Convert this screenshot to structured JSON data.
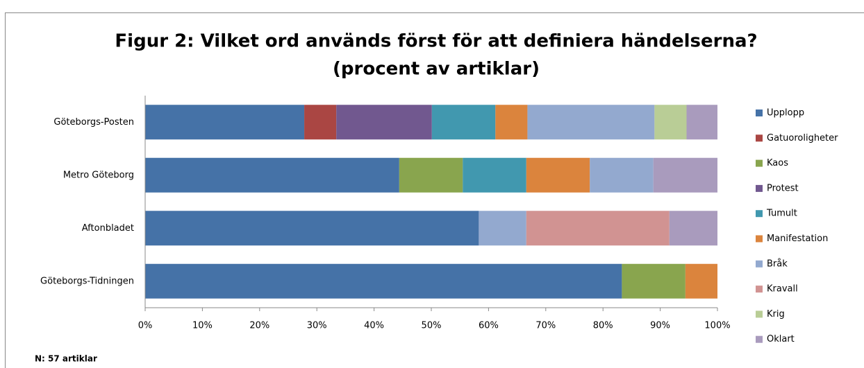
{
  "chart_data": {
    "type": "stacked-barh",
    "title": "Figur 2: Vilket ord används först för att definiera händelserna?",
    "subtitle": "(procent av artiklar)",
    "note": "N: 57 artiklar",
    "categories": [
      "Göteborgs-Posten",
      "Metro Göteborg",
      "Aftonbladet",
      "Göteborgs-Tidningen"
    ],
    "series": [
      {
        "name": "Upplopp",
        "color": "#4572a7",
        "values": [
          27.8,
          44.4,
          58.3,
          83.3
        ]
      },
      {
        "name": "Gatuoroligheter",
        "color": "#aa4643",
        "values": [
          5.6,
          null,
          null,
          null
        ]
      },
      {
        "name": "Kaos",
        "color": "#89a54e",
        "values": [
          null,
          11.1,
          null,
          11.1
        ]
      },
      {
        "name": "Protest",
        "color": "#71588f",
        "values": [
          16.7,
          null,
          null,
          null
        ]
      },
      {
        "name": "Tumult",
        "color": "#4198af",
        "values": [
          11.1,
          11.1,
          null,
          null
        ]
      },
      {
        "name": "Manifestation",
        "color": "#db843d",
        "values": [
          5.6,
          11.1,
          null,
          5.6
        ]
      },
      {
        "name": "Bråk",
        "color": "#93a9cf",
        "values": [
          22.2,
          11.1,
          8.3,
          null
        ]
      },
      {
        "name": "Kravall",
        "color": "#d19392",
        "values": [
          null,
          null,
          25,
          null
        ]
      },
      {
        "name": "Krig",
        "color": "#b9cd96",
        "values": [
          5.6,
          null,
          null,
          null
        ]
      },
      {
        "name": "Oklart",
        "color": "#a99bbd",
        "values": [
          5.4,
          11.2,
          8.4,
          null
        ]
      }
    ],
    "xlim": [
      0,
      100
    ],
    "xticks": [
      {
        "value": 0,
        "label": "0%"
      },
      {
        "value": 10,
        "label": "10%"
      },
      {
        "value": 20,
        "label": "20%"
      },
      {
        "value": 30,
        "label": "30%"
      },
      {
        "value": 40,
        "label": "40%"
      },
      {
        "value": 50,
        "label": "50%"
      },
      {
        "value": 60,
        "label": "60%"
      },
      {
        "value": 70,
        "label": "70%"
      },
      {
        "value": 80,
        "label": "80%"
      },
      {
        "value": 90,
        "label": "90%"
      },
      {
        "value": 100,
        "label": "100%"
      }
    ],
    "legend": "right",
    "grid": false
  }
}
